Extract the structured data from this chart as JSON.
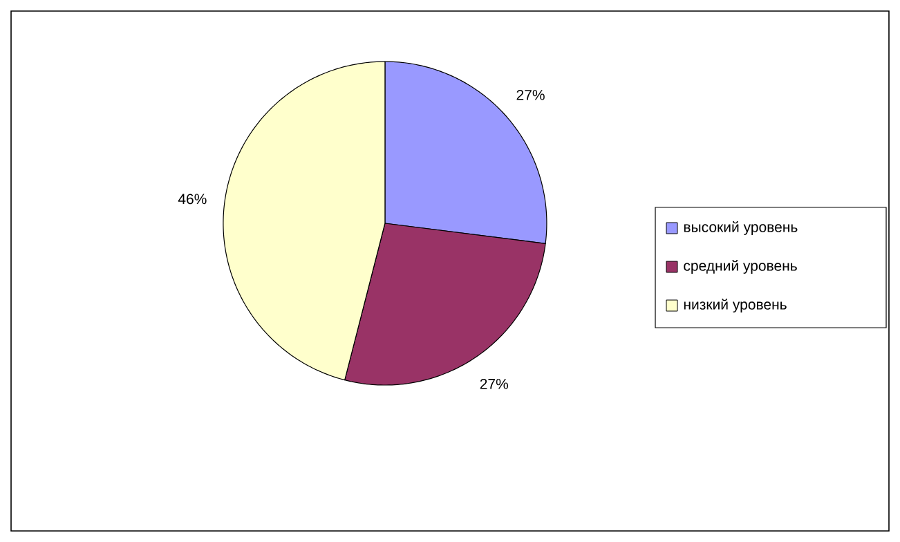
{
  "chart_data": {
    "type": "pie",
    "categories": [
      "высокий уровень",
      "средний уровень",
      "низкий уровень"
    ],
    "values": [
      27,
      27,
      46
    ],
    "colors": [
      "#9999ff",
      "#993366",
      "#ffffcc"
    ],
    "data_labels": true,
    "value_labels": [
      "27%",
      "27%",
      "46%"
    ],
    "legend": "right"
  }
}
